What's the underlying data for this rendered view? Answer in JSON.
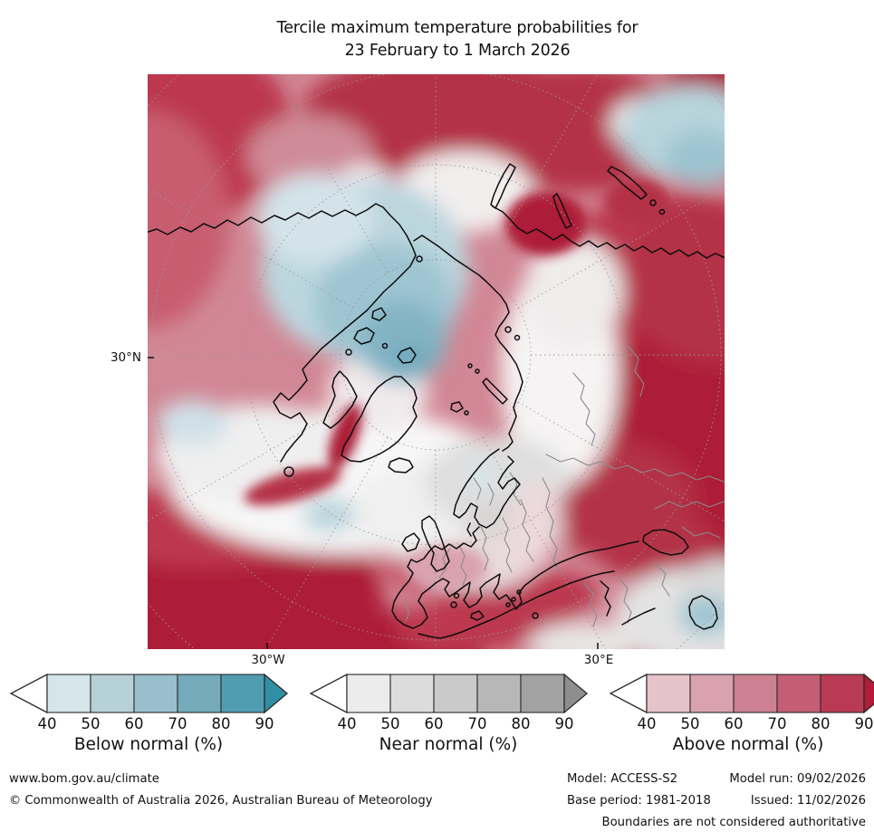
{
  "title": {
    "line1": "Tercile maximum temperature probabilities for",
    "line2": "23 February to 1 March 2026"
  },
  "map": {
    "lat_label": "30°N",
    "lon_label_west": "30°W",
    "lon_label_east": "30°E"
  },
  "legends": [
    {
      "label": "Below normal (%)",
      "ticks": [
        "40",
        "50",
        "60",
        "70",
        "80",
        "90"
      ],
      "segment_colors": [
        "#d5e5e9",
        "#b7d1d9",
        "#98bfcb",
        "#74aaba",
        "#509cb0"
      ],
      "arrow_color": "#2e8fa5",
      "outline_color": "#2a2a2a"
    },
    {
      "label": "Near normal (%)",
      "ticks": [
        "40",
        "50",
        "60",
        "70",
        "80",
        "90"
      ],
      "segment_colors": [
        "#ececec",
        "#dcdcdc",
        "#cacaca",
        "#b7b7b7",
        "#a2a2a2"
      ],
      "arrow_color": "#8e8e8e",
      "outline_color": "#2a2a2a"
    },
    {
      "label": "Above normal (%)",
      "ticks": [
        "40",
        "50",
        "60",
        "70",
        "80",
        "90"
      ],
      "segment_colors": [
        "#e6c3cb",
        "#d9a2ae",
        "#cd8092",
        "#c35e74",
        "#b93a54"
      ],
      "arrow_color": "#b01c39",
      "outline_color": "#2a2a2a"
    }
  ],
  "footer": {
    "url": "www.bom.gov.au/climate",
    "copyright": "© Commonwealth of Australia 2026, Australian Bureau of Meteorology",
    "model": "Model: ACCESS-S2",
    "model_run": "Model run: 09/02/2026",
    "base_period": "Base period: 1981-2018",
    "issued": "Issued: 11/02/2026",
    "disclaimer": "Boundaries are not considered authoritative"
  }
}
